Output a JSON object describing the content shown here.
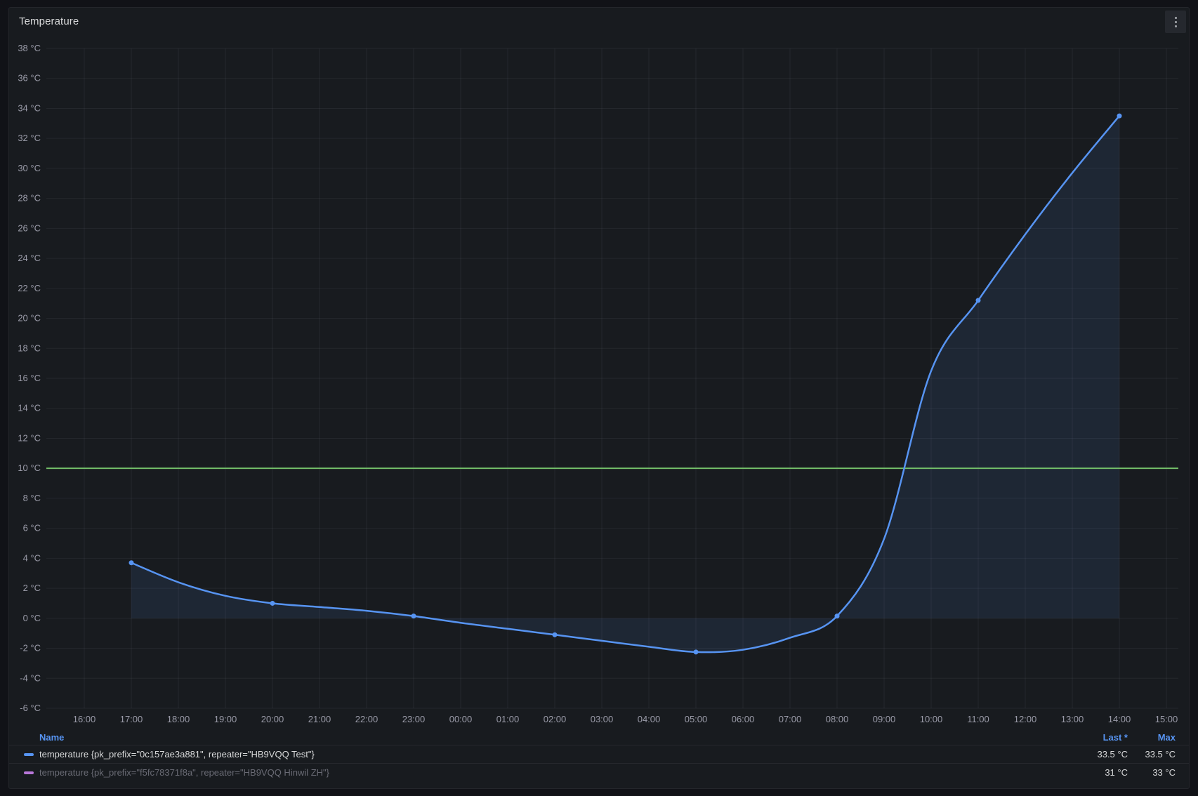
{
  "panel": {
    "title": "Temperature"
  },
  "colors": {
    "page_bg": "#111217",
    "panel_bg": "#181b1f",
    "grid": "rgba(204,204,220,0.07)",
    "axis_text": "rgba(204,204,220,0.72)",
    "title_text": "#d8d9da",
    "series1_blue": "#5794F2",
    "series2_purple": "#B877D9",
    "threshold_green": "#73BF69",
    "area_fill": "rgba(87,148,242,0.10)",
    "legend_header_blue": "#5794F2"
  },
  "chart_data": {
    "type": "line",
    "title": "Temperature",
    "x_tick_labels": [
      "16:00",
      "17:00",
      "18:00",
      "19:00",
      "20:00",
      "21:00",
      "22:00",
      "23:00",
      "00:00",
      "01:00",
      "02:00",
      "03:00",
      "04:00",
      "05:00",
      "06:00",
      "07:00",
      "08:00",
      "09:00",
      "10:00",
      "11:00",
      "12:00",
      "13:00",
      "14:00",
      "15:00"
    ],
    "y_ticks": [
      -6,
      -4,
      -2,
      0,
      2,
      4,
      6,
      8,
      10,
      12,
      14,
      16,
      18,
      20,
      22,
      24,
      26,
      28,
      30,
      32,
      34,
      36,
      38
    ],
    "y_unit": "°C",
    "ylim": [
      -6,
      38
    ],
    "grid": true,
    "legend_position": "bottom-table",
    "legend_columns": [
      "Name",
      "Last *",
      "Max"
    ],
    "threshold_line": {
      "value": 10,
      "color": "#73BF69"
    },
    "fill_to": 0,
    "series": [
      {
        "name": "temperature {pk_prefix=\"0c157ae3a881\", repeater=\"HB9VQQ Test\"}",
        "color": "#5794F2",
        "visible": true,
        "x": [
          "17:00",
          "18:00",
          "19:00",
          "20:00",
          "21:00",
          "22:00",
          "23:00",
          "00:00",
          "01:00",
          "02:00",
          "03:00",
          "04:00",
          "05:00",
          "06:00",
          "07:00",
          "08:00",
          "09:00",
          "10:00",
          "11:00",
          "12:00",
          "13:00",
          "14:00"
        ],
        "values": [
          3.7,
          2.4,
          1.5,
          1.0,
          0.75,
          0.5,
          0.15,
          -0.3,
          -0.7,
          -1.1,
          -1.5,
          -1.9,
          -2.25,
          -2.1,
          -1.3,
          0.15,
          5.3,
          16.5,
          21.2,
          25.6,
          29.7,
          33.5
        ],
        "marker_x": [
          "17:00",
          "20:00",
          "23:00",
          "02:00",
          "05:00",
          "08:00",
          "11:00",
          "14:00"
        ],
        "last": "33.5 °C",
        "max": "33.5 °C"
      },
      {
        "name": "temperature {pk_prefix=\"f5fc78371f8a\", repeater=\"HB9VQQ Hinwil ZH\"}",
        "color": "#B877D9",
        "visible": false,
        "x": [],
        "values": [],
        "marker_x": [],
        "last": "31 °C",
        "max": "33 °C"
      }
    ]
  }
}
